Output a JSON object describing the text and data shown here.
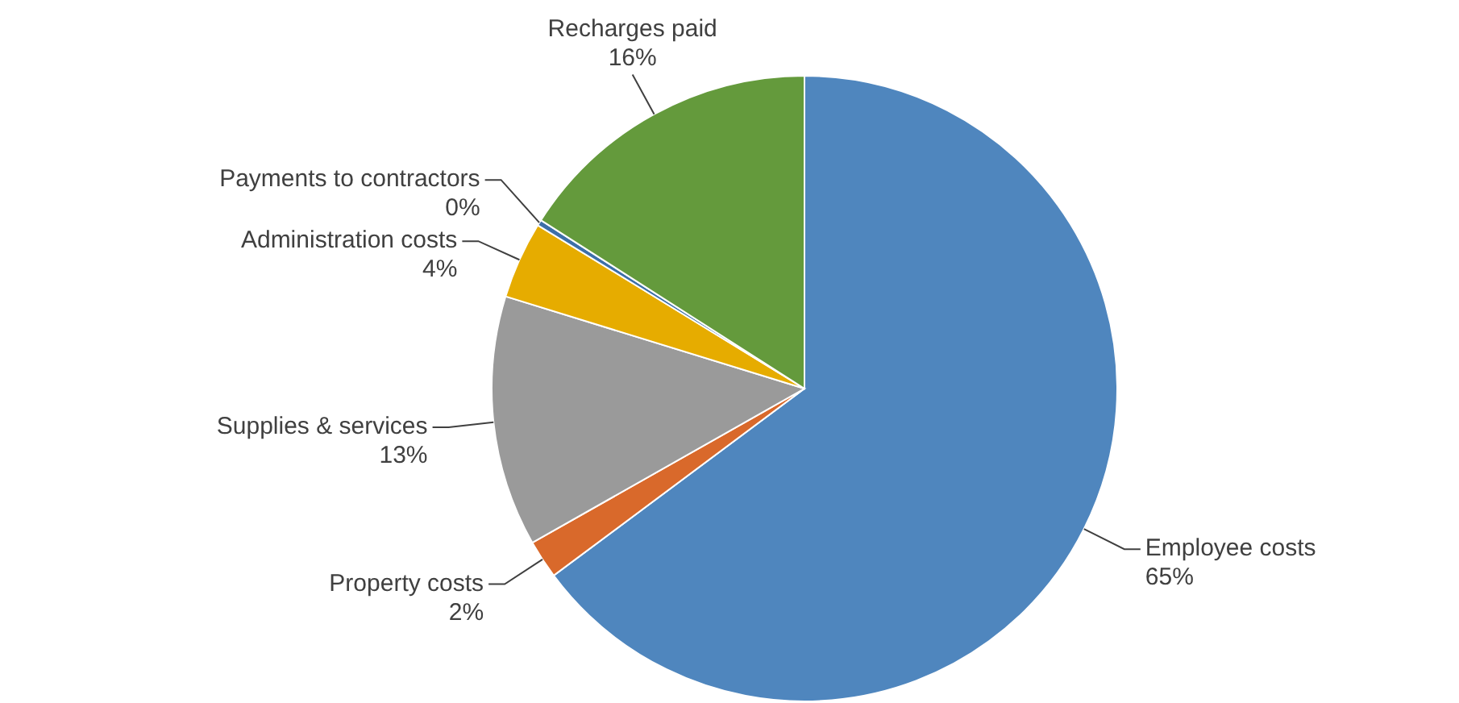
{
  "chart_data": {
    "type": "pie",
    "categories": [
      "Employee costs",
      "Property costs",
      "Supplies & services",
      "Administration costs",
      "Payments to contractors",
      "Recharges paid"
    ],
    "values": [
      65,
      2,
      13,
      4,
      0.3,
      16
    ],
    "value_labels": [
      "65%",
      "2%",
      "13%",
      "4%",
      "0%",
      "16%"
    ],
    "colors": [
      "#4f86be",
      "#d9692b",
      "#9a9a9a",
      "#e6ac00",
      "#3d6fa8",
      "#649a3c"
    ],
    "legend": false
  }
}
